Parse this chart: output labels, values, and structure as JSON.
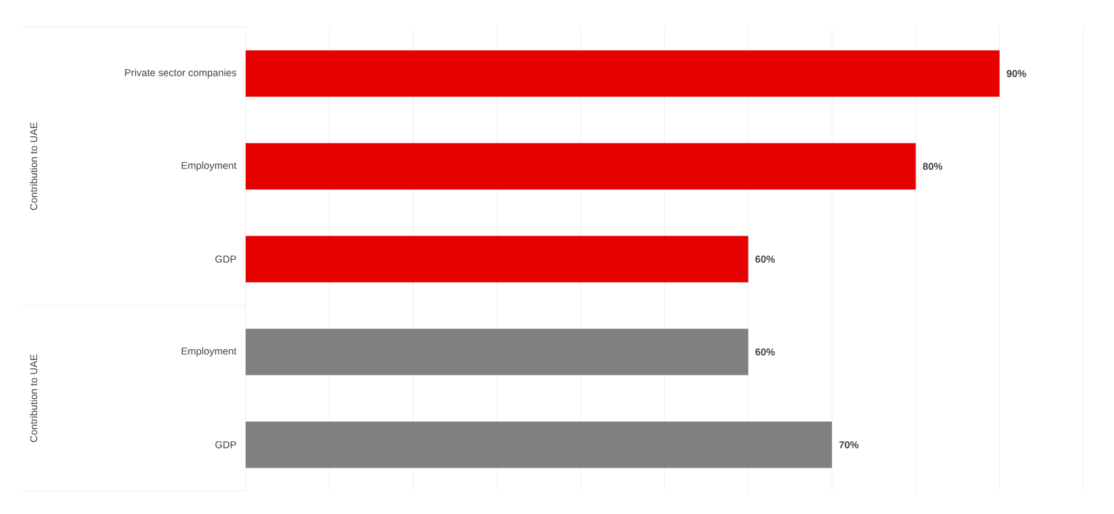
{
  "chart_data": {
    "type": "bar",
    "orientation": "horizontal",
    "categories": [
      "Private sector companies",
      "Employment",
      "GDP",
      "Employment",
      "GDP"
    ],
    "values": [
      90,
      80,
      60,
      60,
      70
    ],
    "colors": [
      "#e60000",
      "#e60000",
      "#e60000",
      "#808080",
      "#808080"
    ],
    "value_labels": [
      "90%",
      "80%",
      "60%",
      "60%",
      "70%"
    ],
    "xlim": [
      0,
      100
    ],
    "xticks": [
      {
        "value": 0,
        "label": null
      },
      {
        "value": 10,
        "label": null
      },
      {
        "value": 20,
        "label": null
      },
      {
        "value": 30,
        "label": null
      },
      {
        "value": 40,
        "label": null
      },
      {
        "value": 50,
        "label": null
      },
      {
        "value": 60,
        "label": null
      },
      {
        "value": 70,
        "label": null
      },
      {
        "value": 80,
        "label": null
      },
      {
        "value": 90,
        "label": null
      },
      {
        "value": 100,
        "label": null
      }
    ],
    "tick_labels": "y",
    "grid": "x",
    "annotations": [
      "Contribution to UAE",
      "Contribution to UAE"
    ]
  }
}
